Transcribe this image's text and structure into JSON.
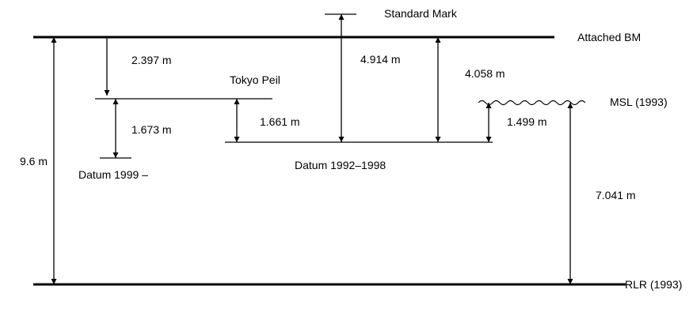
{
  "levels": {
    "standard_mark": "Standard Mark",
    "attached_bm": "Attached BM",
    "tokyo_peil": "Tokyo Peil",
    "msl": "MSL (1993)",
    "datum_1999": "Datum 1999 –",
    "datum_1992_1998": "Datum 1992–1998",
    "rlr": "RLR (1993)"
  },
  "distances": {
    "bm_to_rlr": "9.6 m",
    "bm_to_tokyo_peil": "2.397 m",
    "tokyo_peil_to_datum_1999": "1.673 m",
    "tokyo_peil_to_datum_1992": "1.661 m",
    "standard_mark_to_datum_1992": "4.914 m",
    "bm_to_datum_1992": "4.058 m",
    "msl_to_datum_1992": "1.499 m",
    "msl_to_rlr": "7.041 m"
  }
}
